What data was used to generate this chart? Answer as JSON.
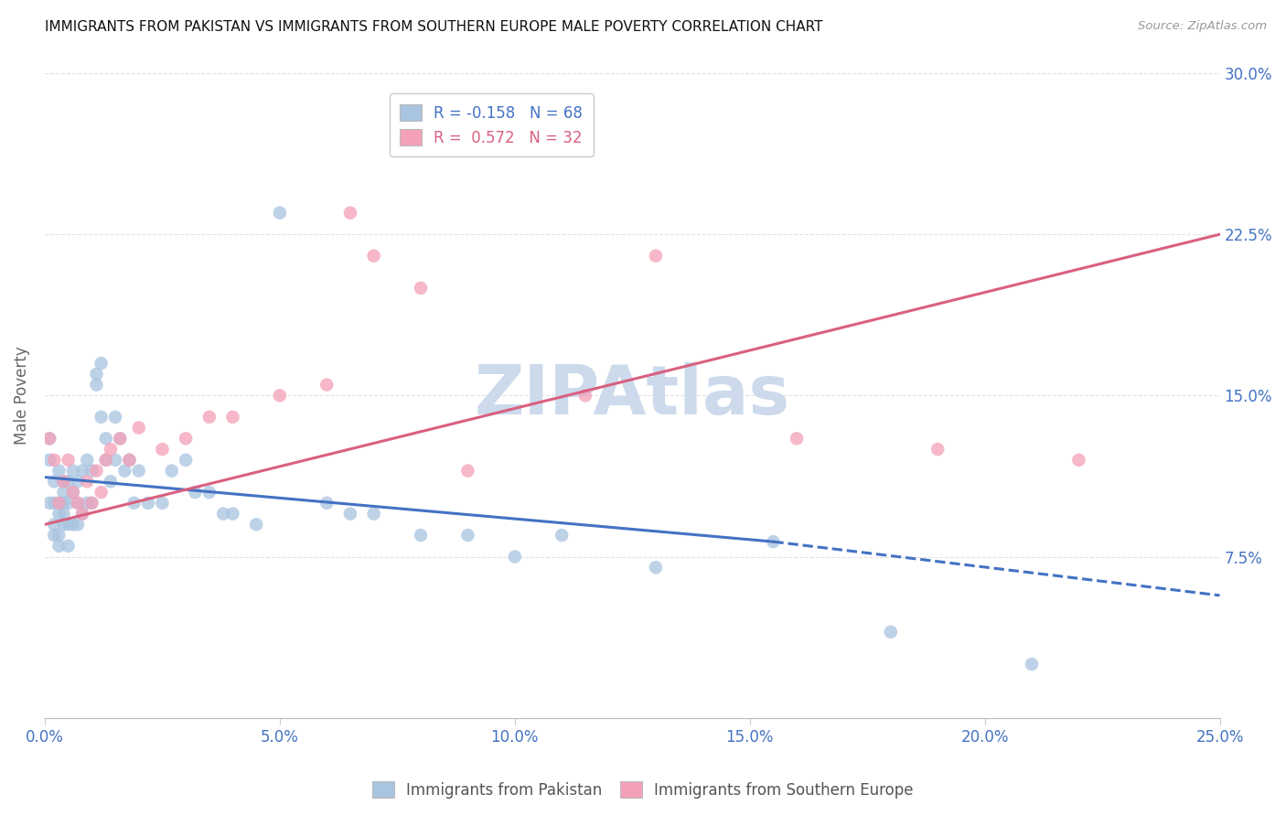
{
  "title": "IMMIGRANTS FROM PAKISTAN VS IMMIGRANTS FROM SOUTHERN EUROPE MALE POVERTY CORRELATION CHART",
  "source": "Source: ZipAtlas.com",
  "ylabel": "Male Poverty",
  "x_tick_labels": [
    "0.0%",
    "5.0%",
    "10.0%",
    "15.0%",
    "20.0%",
    "25.0%"
  ],
  "x_tick_vals": [
    0.0,
    0.05,
    0.1,
    0.15,
    0.2,
    0.25
  ],
  "y_tick_labels": [
    "7.5%",
    "15.0%",
    "22.5%",
    "30.0%"
  ],
  "y_tick_vals": [
    0.075,
    0.15,
    0.225,
    0.3
  ],
  "xlim": [
    0.0,
    0.25
  ],
  "ylim": [
    0.0,
    0.3
  ],
  "legend_r1": "R = -0.158",
  "legend_n1": "N = 68",
  "legend_r2": "R =  0.572",
  "legend_n2": "N = 32",
  "blue_color": "#a8c4e0",
  "pink_color": "#f4a0b8",
  "blue_line_color": "#4472c4",
  "pink_line_color": "#d96080",
  "watermark": "ZIPAtlas",
  "watermark_color": "#ccdaec",
  "title_color": "#111111",
  "axis_label_color": "#666666",
  "tick_label_color": "#4472c4",
  "grid_color": "#dddddd",
  "pak_line_x0": 0.0,
  "pak_line_y0": 0.112,
  "pak_line_x1": 0.155,
  "pak_line_y1": 0.082,
  "pak_line_x_dash_end": 0.25,
  "pak_line_y_dash_end": 0.057,
  "eur_line_x0": 0.0,
  "eur_line_y0": 0.09,
  "eur_line_x1": 0.25,
  "eur_line_y1": 0.225,
  "pakistan_x": [
    0.001,
    0.001,
    0.001,
    0.002,
    0.002,
    0.002,
    0.002,
    0.003,
    0.003,
    0.003,
    0.003,
    0.003,
    0.004,
    0.004,
    0.004,
    0.004,
    0.004,
    0.005,
    0.005,
    0.005,
    0.005,
    0.006,
    0.006,
    0.006,
    0.007,
    0.007,
    0.007,
    0.008,
    0.008,
    0.009,
    0.009,
    0.01,
    0.01,
    0.011,
    0.011,
    0.012,
    0.012,
    0.013,
    0.013,
    0.014,
    0.015,
    0.015,
    0.016,
    0.017,
    0.018,
    0.019,
    0.02,
    0.022,
    0.025,
    0.027,
    0.03,
    0.032,
    0.035,
    0.038,
    0.04,
    0.045,
    0.05,
    0.06,
    0.065,
    0.07,
    0.08,
    0.09,
    0.1,
    0.11,
    0.13,
    0.155,
    0.18,
    0.21
  ],
  "pakistan_y": [
    0.13,
    0.12,
    0.1,
    0.1,
    0.09,
    0.085,
    0.11,
    0.115,
    0.1,
    0.095,
    0.085,
    0.08,
    0.09,
    0.1,
    0.11,
    0.095,
    0.105,
    0.1,
    0.11,
    0.09,
    0.08,
    0.09,
    0.105,
    0.115,
    0.1,
    0.09,
    0.11,
    0.095,
    0.115,
    0.1,
    0.12,
    0.1,
    0.115,
    0.16,
    0.155,
    0.165,
    0.14,
    0.12,
    0.13,
    0.11,
    0.14,
    0.12,
    0.13,
    0.115,
    0.12,
    0.1,
    0.115,
    0.1,
    0.1,
    0.115,
    0.12,
    0.105,
    0.105,
    0.095,
    0.095,
    0.09,
    0.235,
    0.1,
    0.095,
    0.095,
    0.085,
    0.085,
    0.075,
    0.085,
    0.07,
    0.082,
    0.04,
    0.025
  ],
  "s_europe_x": [
    0.001,
    0.002,
    0.003,
    0.004,
    0.005,
    0.006,
    0.007,
    0.008,
    0.009,
    0.01,
    0.011,
    0.012,
    0.013,
    0.014,
    0.016,
    0.018,
    0.02,
    0.025,
    0.03,
    0.035,
    0.04,
    0.05,
    0.06,
    0.065,
    0.07,
    0.08,
    0.09,
    0.115,
    0.13,
    0.16,
    0.19,
    0.22
  ],
  "s_europe_y": [
    0.13,
    0.12,
    0.1,
    0.11,
    0.12,
    0.105,
    0.1,
    0.095,
    0.11,
    0.1,
    0.115,
    0.105,
    0.12,
    0.125,
    0.13,
    0.12,
    0.135,
    0.125,
    0.13,
    0.14,
    0.14,
    0.15,
    0.155,
    0.235,
    0.215,
    0.2,
    0.115,
    0.15,
    0.215,
    0.13,
    0.125,
    0.12
  ]
}
